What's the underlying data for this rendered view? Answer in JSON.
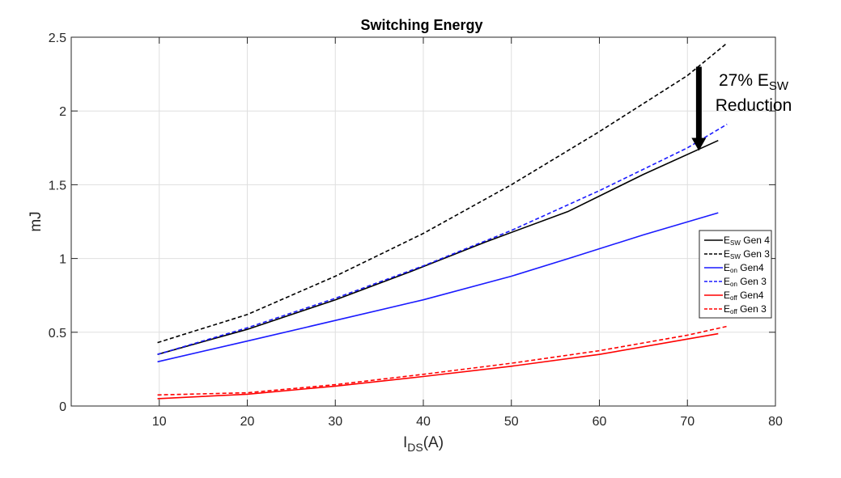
{
  "chart_data": {
    "type": "line",
    "title": "Switching Energy",
    "xlabel": {
      "main": "I",
      "sub": "DS",
      "suffix": "(A)"
    },
    "ylabel": "mJ",
    "xlim": [
      0,
      80
    ],
    "ylim": [
      0,
      2.5
    ],
    "xticks": [
      10,
      20,
      30,
      40,
      50,
      60,
      70,
      80
    ],
    "xtick_labels": [
      "10",
      "20",
      "30",
      "40",
      "50",
      "60",
      "70",
      "80"
    ],
    "yticks": [
      0,
      0.5,
      1,
      1.5,
      2,
      2.5
    ],
    "ytick_labels": [
      "0",
      "0.5",
      "1",
      "1.5",
      "2",
      "2.5"
    ],
    "grid": true,
    "legend_position": "right",
    "series": [
      {
        "id": "esw-gen4",
        "main": "E",
        "sub": "SW",
        "suffix": " Gen 4",
        "color": "#000000",
        "dash": "solid",
        "x": [
          9.8,
          20,
          30,
          38.5,
          47,
          56.5,
          65,
          73.5
        ],
        "y": [
          0.35,
          0.52,
          0.72,
          0.91,
          1.11,
          1.32,
          1.57,
          1.8
        ]
      },
      {
        "id": "esw-gen3",
        "main": "E",
        "sub": "SW",
        "suffix": " Gen 3",
        "color": "#000000",
        "dash": "dashed",
        "x": [
          9.8,
          20,
          30,
          40,
          50,
          60,
          70,
          74.5
        ],
        "y": [
          0.43,
          0.62,
          0.88,
          1.17,
          1.5,
          1.86,
          2.24,
          2.46
        ]
      },
      {
        "id": "eon-gen4",
        "main": "E",
        "sub": "on",
        "suffix": " Gen4",
        "color": "#1a1aff",
        "dash": "solid",
        "x": [
          9.8,
          20,
          30,
          40,
          50,
          56.5,
          65,
          73.5
        ],
        "y": [
          0.3,
          0.44,
          0.58,
          0.72,
          0.88,
          1.0,
          1.16,
          1.31
        ]
      },
      {
        "id": "eon-gen3",
        "main": "E",
        "sub": "on",
        "suffix": " Gen 3",
        "color": "#1a1aff",
        "dash": "dashed",
        "x": [
          9.8,
          20,
          30,
          40,
          50,
          60,
          70,
          74.5
        ],
        "y": [
          0.35,
          0.53,
          0.73,
          0.95,
          1.19,
          1.46,
          1.75,
          1.91
        ]
      },
      {
        "id": "eoff-gen4",
        "main": "E",
        "sub": "off",
        "suffix": " Gen4",
        "color": "#ff0000",
        "dash": "solid",
        "x": [
          9.8,
          20,
          30,
          40,
          50,
          60,
          73.5
        ],
        "y": [
          0.05,
          0.08,
          0.135,
          0.2,
          0.27,
          0.35,
          0.49
        ]
      },
      {
        "id": "eoff-gen3",
        "main": "E",
        "sub": "off",
        "suffix": " Gen 3",
        "color": "#ff0000",
        "dash": "dashed",
        "x": [
          9.8,
          20,
          30,
          40,
          50,
          60,
          70,
          74.5
        ],
        "y": [
          0.075,
          0.09,
          0.145,
          0.215,
          0.29,
          0.375,
          0.48,
          0.54
        ]
      }
    ],
    "annotation": {
      "line1_main": "27% E",
      "line1_sub": "SW",
      "line2": "Reduction",
      "arrow_from": {
        "x": 71.3,
        "y": 2.3
      },
      "arrow_to": {
        "x": 71.3,
        "y": 1.73
      }
    }
  }
}
